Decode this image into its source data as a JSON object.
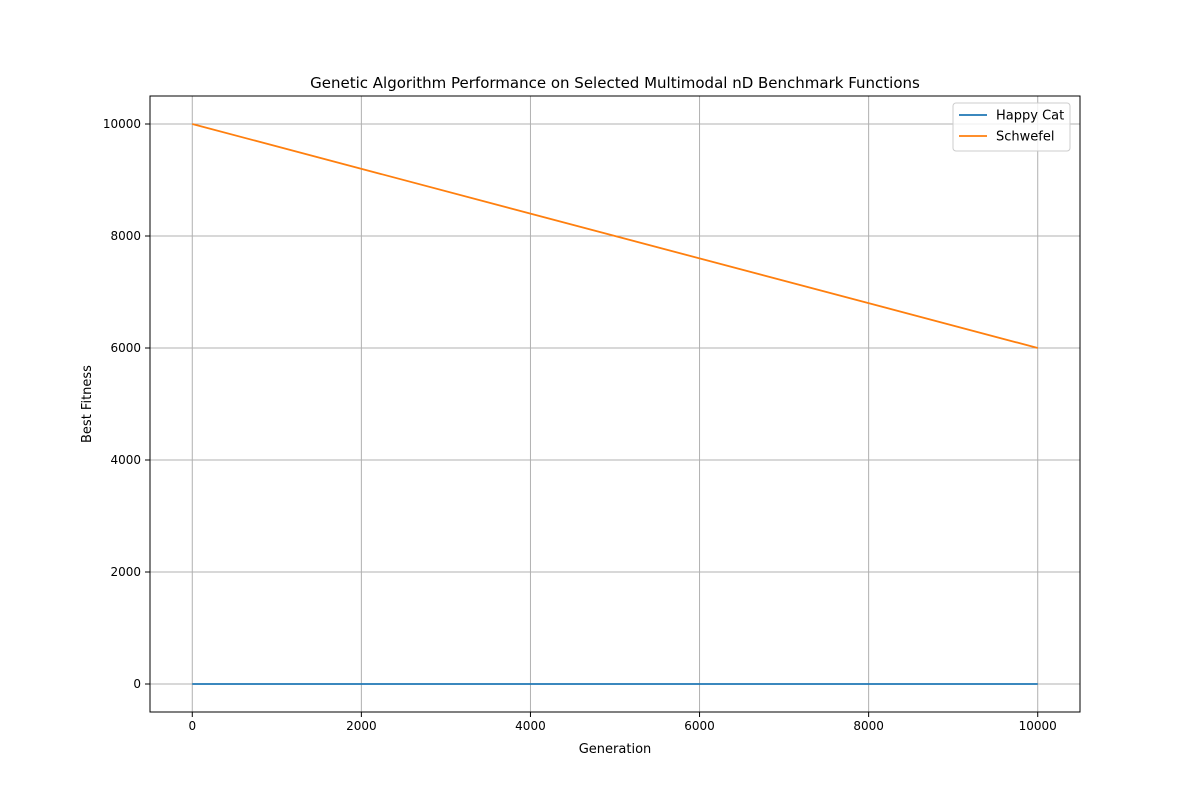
{
  "chart_data": {
    "type": "line",
    "title": "Genetic Algorithm Performance on Selected Multimodal nD Benchmark Functions",
    "xlabel": "Generation",
    "ylabel": "Best Fitness",
    "xlim": [
      -500,
      10500
    ],
    "ylim": [
      -500,
      10500
    ],
    "xticks": [
      0,
      2000,
      4000,
      6000,
      8000,
      10000
    ],
    "yticks": [
      0,
      2000,
      4000,
      6000,
      8000,
      10000
    ],
    "grid": true,
    "legend_position": "top-right",
    "series": [
      {
        "name": "Happy Cat",
        "color": "#1f77b4",
        "x": [
          0,
          10000
        ],
        "y": [
          0,
          0
        ]
      },
      {
        "name": "Schwefel",
        "color": "#ff7f0e",
        "x": [
          0,
          10000
        ],
        "y": [
          10000,
          6000
        ]
      }
    ]
  }
}
